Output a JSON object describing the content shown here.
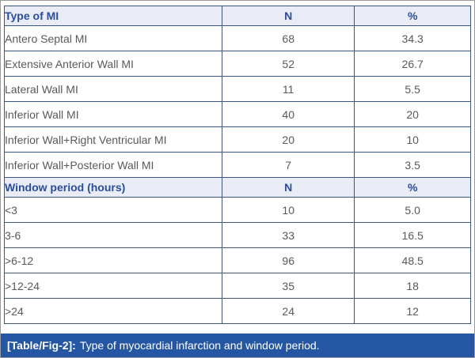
{
  "colors": {
    "header_bg": "#e9ecf5",
    "header_text": "#2b4d9d",
    "inner_border": "#3a5784",
    "outer_border": "#9a9a9a",
    "body_text": "#58595b",
    "caption_bar_bg": "#2456a4",
    "caption_text": "#ffffff"
  },
  "table": {
    "section1": {
      "header": {
        "col1": "Type of MI",
        "col2": "N",
        "col3": "%"
      },
      "rows": [
        {
          "label": "Antero Septal MI",
          "n": "68",
          "pct": "34.3"
        },
        {
          "label": "Extensive Anterior Wall MI",
          "n": "52",
          "pct": "26.7"
        },
        {
          "label": "Lateral Wall MI",
          "n": "11",
          "pct": "5.5"
        },
        {
          "label": "Inferior Wall MI",
          "n": "40",
          "pct": "20"
        },
        {
          "label": "Inferior Wall+Right Ventricular MI",
          "n": "20",
          "pct": "10"
        },
        {
          "label": "Inferior Wall+Posterior Wall MI",
          "n": "7",
          "pct": "3.5"
        }
      ]
    },
    "section2": {
      "header": {
        "col1": "Window period (hours)",
        "col2": "N",
        "col3": "%"
      },
      "rows": [
        {
          "label": "<3",
          "n": "10",
          "pct": "5.0"
        },
        {
          "label": "3-6",
          "n": "33",
          "pct": "16.5"
        },
        {
          "label": ">6-12",
          "n": "96",
          "pct": "48.5"
        },
        {
          "label": ">12-24",
          "n": "35",
          "pct": "18"
        },
        {
          "label": ">24",
          "n": "24",
          "pct": "12"
        }
      ]
    }
  },
  "caption": {
    "tag": "[Table/Fig-2]:",
    "text": "Type of myocardial infarction and window period."
  }
}
